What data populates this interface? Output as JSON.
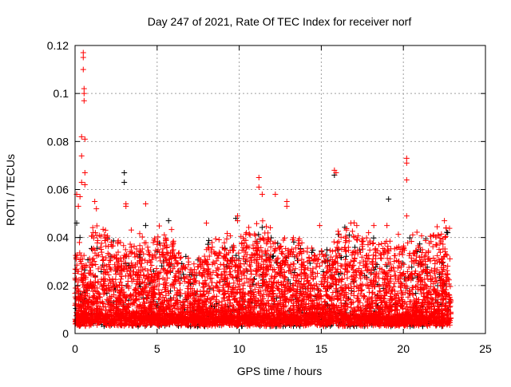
{
  "chart_data": {
    "type": "scatter",
    "title": "Day 247 of 2021, Rate Of TEC Index for receiver norf",
    "xlabel": "GPS time / hours",
    "ylabel": "ROTI / TECUs",
    "xlim": [
      0,
      25
    ],
    "ylim": [
      0,
      0.12
    ],
    "xticks": [
      "0",
      "5",
      "10",
      "15",
      "20",
      "25"
    ],
    "xtick_values": [
      0,
      5,
      10,
      15,
      20,
      25
    ],
    "yticks": [
      "0",
      "0.02",
      "0.04",
      "0.06",
      "0.08",
      "0.1",
      "0.12"
    ],
    "ytick_values": [
      0,
      0.02,
      0.04,
      0.06,
      0.08,
      0.1,
      0.12
    ],
    "grid": true,
    "marker": "plus",
    "dense_band": {
      "description_hours": [
        0,
        1,
        2,
        3,
        4,
        5,
        6,
        7,
        8,
        9,
        10,
        11,
        12,
        13,
        14,
        15,
        16,
        17,
        18,
        19,
        20,
        21,
        22
      ],
      "upper_envelope": [
        0.036,
        0.045,
        0.04,
        0.04,
        0.04,
        0.045,
        0.035,
        0.032,
        0.04,
        0.04,
        0.045,
        0.045,
        0.04,
        0.04,
        0.035,
        0.04,
        0.045,
        0.045,
        0.04,
        0.04,
        0.04,
        0.045,
        0.045
      ],
      "lower_bound": 0.003,
      "x_end": 22.9
    },
    "series": [
      {
        "name": "black",
        "color": "#000000",
        "points": [
          [
            3.0,
            0.067
          ],
          [
            3.0,
            0.063
          ],
          [
            19.1,
            0.056
          ],
          [
            5.7,
            0.047
          ],
          [
            0.1,
            0.046
          ],
          [
            4.3,
            0.045
          ],
          [
            22.7,
            0.042
          ],
          [
            0.3,
            0.04
          ],
          [
            9.8,
            0.048
          ],
          [
            15.8,
            0.066
          ]
        ]
      },
      {
        "name": "red",
        "color": "#ff0000",
        "points": [
          [
            0.5,
            0.117
          ],
          [
            0.5,
            0.115
          ],
          [
            0.5,
            0.11
          ],
          [
            0.55,
            0.102
          ],
          [
            0.55,
            0.1
          ],
          [
            0.55,
            0.097
          ],
          [
            0.4,
            0.082
          ],
          [
            0.6,
            0.081
          ],
          [
            0.4,
            0.074
          ],
          [
            0.6,
            0.067
          ],
          [
            0.4,
            0.063
          ],
          [
            0.6,
            0.062
          ],
          [
            0.1,
            0.058
          ],
          [
            0.2,
            0.053
          ],
          [
            0.3,
            0.057
          ],
          [
            1.2,
            0.055
          ],
          [
            1.3,
            0.052
          ],
          [
            3.1,
            0.054
          ],
          [
            3.1,
            0.053
          ],
          [
            4.3,
            0.054
          ],
          [
            11.2,
            0.065
          ],
          [
            11.2,
            0.061
          ],
          [
            11.4,
            0.058
          ],
          [
            12.2,
            0.058
          ],
          [
            12.9,
            0.055
          ],
          [
            12.9,
            0.053
          ],
          [
            15.8,
            0.068
          ],
          [
            15.9,
            0.067
          ],
          [
            20.2,
            0.073
          ],
          [
            20.2,
            0.071
          ],
          [
            20.2,
            0.064
          ],
          [
            20.2,
            0.049
          ],
          [
            9.9,
            0.049
          ],
          [
            9.9,
            0.047
          ],
          [
            8.0,
            0.046
          ],
          [
            19.0,
            0.045
          ],
          [
            22.5,
            0.047
          ],
          [
            22.6,
            0.044
          ],
          [
            16.8,
            0.046
          ],
          [
            14.9,
            0.045
          ],
          [
            18.2,
            0.045
          ]
        ]
      }
    ]
  }
}
